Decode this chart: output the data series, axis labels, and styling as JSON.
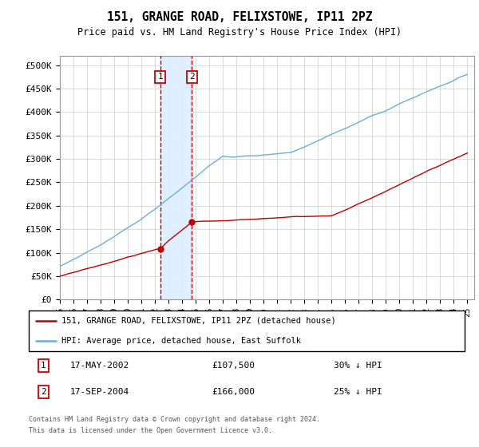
{
  "title": "151, GRANGE ROAD, FELIXSTOWE, IP11 2PZ",
  "subtitle": "Price paid vs. HM Land Registry's House Price Index (HPI)",
  "ylabel_ticks": [
    "£0",
    "£50K",
    "£100K",
    "£150K",
    "£200K",
    "£250K",
    "£300K",
    "£350K",
    "£400K",
    "£450K",
    "£500K"
  ],
  "ytick_values": [
    0,
    50000,
    100000,
    150000,
    200000,
    250000,
    300000,
    350000,
    400000,
    450000,
    500000
  ],
  "ylim": [
    0,
    520000
  ],
  "xlim_start": 1995.0,
  "xlim_end": 2025.5,
  "hpi_color": "#6baed6",
  "price_color": "#c00000",
  "shade_color": "#ddeeff",
  "transaction1_x": 2002.38,
  "transaction1_y": 107500,
  "transaction2_x": 2004.72,
  "transaction2_y": 166000,
  "transaction1_label": "17-MAY-2002",
  "transaction2_label": "17-SEP-2004",
  "transaction1_amount": "£107,500",
  "transaction2_amount": "£166,000",
  "transaction1_hpi": "30% ↓ HPI",
  "transaction2_hpi": "25% ↓ HPI",
  "legend_line1": "151, GRANGE ROAD, FELIXSTOWE, IP11 2PZ (detached house)",
  "legend_line2": "HPI: Average price, detached house, East Suffolk",
  "footer1": "Contains HM Land Registry data © Crown copyright and database right 2024.",
  "footer2": "This data is licensed under the Open Government Licence v3.0.",
  "xtick_years": [
    1995,
    1996,
    1997,
    1998,
    1999,
    2000,
    2001,
    2002,
    2003,
    2004,
    2005,
    2006,
    2007,
    2008,
    2009,
    2010,
    2011,
    2012,
    2013,
    2014,
    2015,
    2016,
    2017,
    2018,
    2019,
    2020,
    2021,
    2022,
    2023,
    2024,
    2025
  ]
}
